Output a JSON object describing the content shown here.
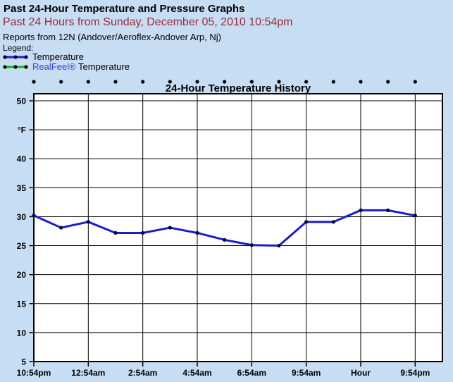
{
  "header": {
    "title": "Past 24-Hour Temperature and Pressure Graphs",
    "subtitle": "Past 24 Hours from Sunday, December 05, 2010 10:54pm",
    "station": "Reports from 12N (Andover/Aeroflex-Andover Arp, Nj)",
    "legend_label": "Legend:",
    "legend": [
      {
        "label": "Temperature",
        "line_color": "#1c1ccd",
        "marker_color": "#000033"
      },
      {
        "label_link": "RealFeel®",
        "label_rest": " Temperature",
        "line_color": "#00c000",
        "marker_color": "#000000"
      }
    ]
  },
  "colors": {
    "page_background": "#c7ddf4",
    "plot_background": "#ffffff",
    "grid": "#000000",
    "temperature_line": "#1c1ccd",
    "temperature_marker": "#000033",
    "realfeel_line": "#00c000",
    "subtitle_red": "#9b2b30",
    "link_blue": "#3646cc",
    "top_marker": "#000000"
  },
  "chart_data": {
    "type": "line",
    "title": "24-Hour Temperature History",
    "y_unit": "°F",
    "ylim": [
      5,
      50
    ],
    "x_slot_range": [
      0,
      15
    ],
    "grid": true,
    "y_ticks": [
      {
        "value": 50,
        "label": "50"
      },
      {
        "value": 45,
        "label": "°F"
      },
      {
        "value": 40,
        "label": "40"
      },
      {
        "value": 35,
        "label": "35"
      },
      {
        "value": 30,
        "label": "30"
      },
      {
        "value": 25,
        "label": "25"
      },
      {
        "value": 20,
        "label": "20"
      },
      {
        "value": 15,
        "label": "15"
      },
      {
        "value": 10,
        "label": "10"
      },
      {
        "value": 5,
        "label": "5"
      }
    ],
    "x_ticks": [
      {
        "slot": 0,
        "label": "10:54pm"
      },
      {
        "slot": 2,
        "label": "12:54am"
      },
      {
        "slot": 4,
        "label": "2:54am"
      },
      {
        "slot": 6,
        "label": "4:54am"
      },
      {
        "slot": 8,
        "label": "6:54am"
      },
      {
        "slot": 10,
        "label": "9:54am"
      },
      {
        "slot": 12,
        "label": "Hour"
      },
      {
        "slot": 14,
        "label": "9:54pm"
      }
    ],
    "series": [
      {
        "name": "Temperature",
        "color": "#1c1ccd",
        "marker_color": "#000033",
        "x_slots": [
          0,
          1,
          2,
          3,
          4,
          5,
          6,
          7,
          8,
          9,
          10,
          11,
          12,
          13,
          14
        ],
        "values": [
          30.2,
          28.1,
          29.1,
          27.2,
          27.2,
          28.1,
          27.2,
          26.0,
          25.1,
          25.0,
          29.1,
          29.1,
          31.1,
          31.1,
          30.2
        ]
      }
    ],
    "top_markers": {
      "count": 15,
      "color": "#000000"
    }
  }
}
